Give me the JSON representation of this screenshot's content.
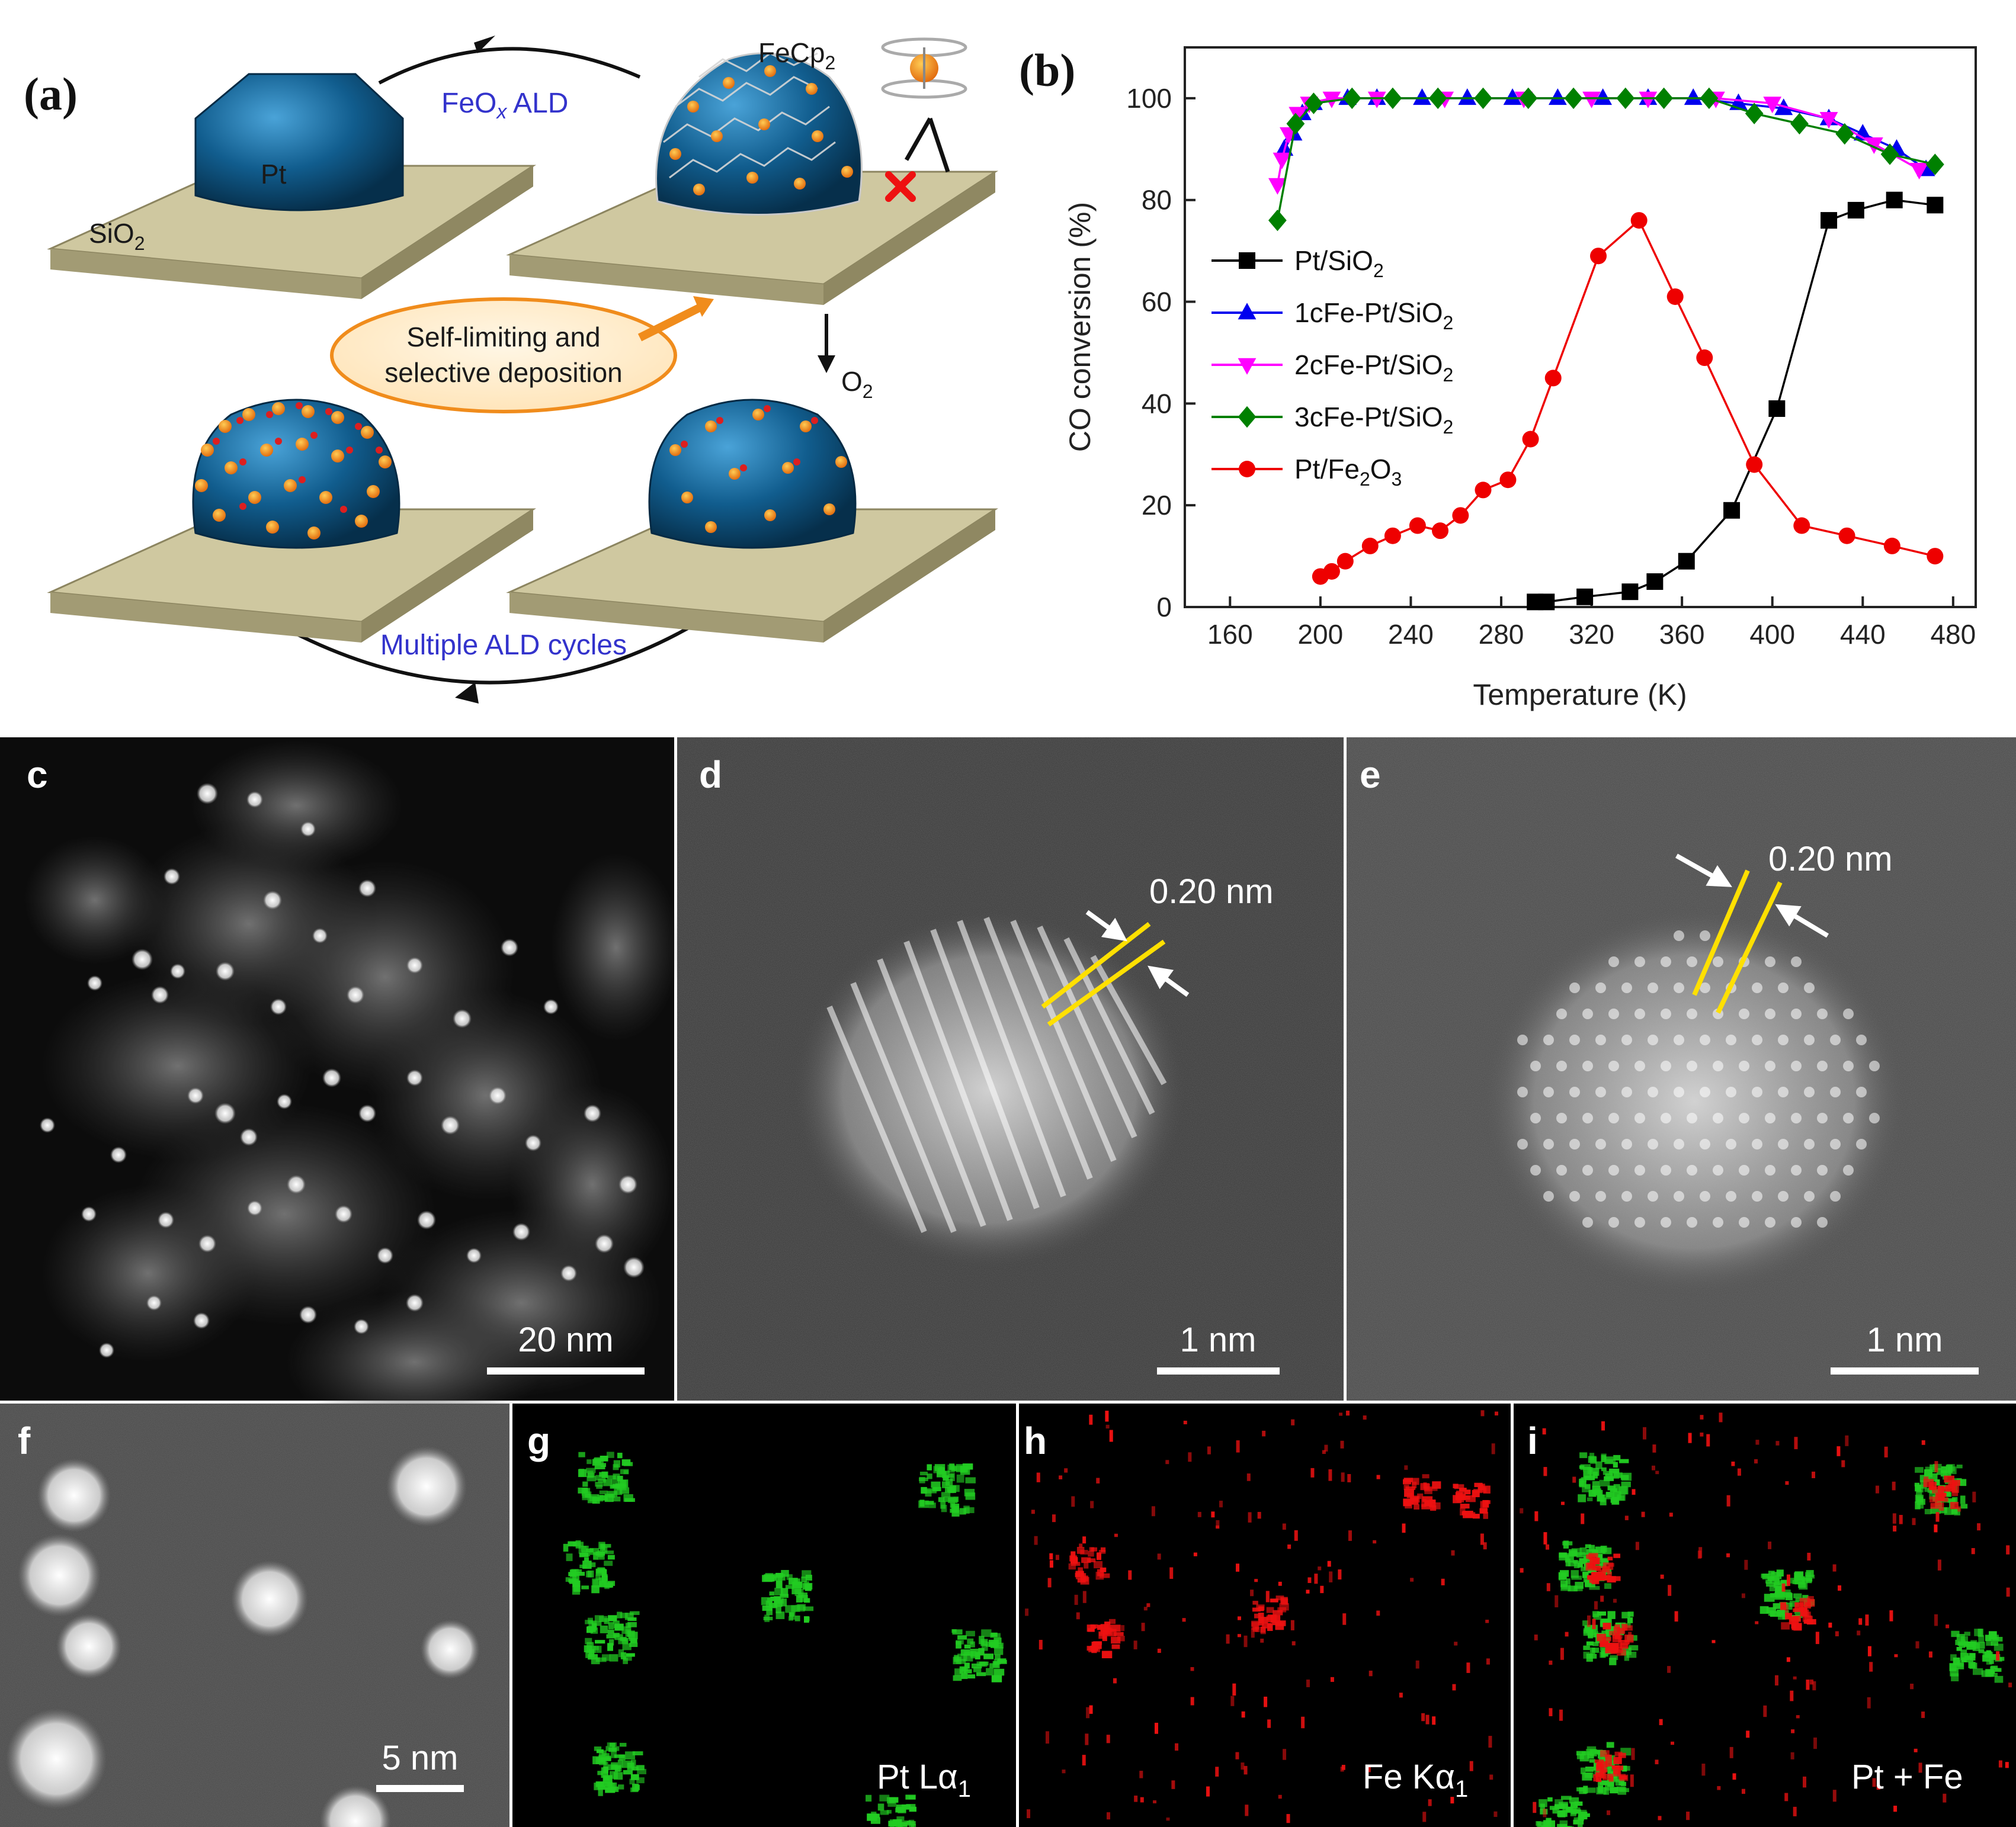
{
  "panels": {
    "a": "(a)",
    "b": "(b)",
    "c": "c",
    "d": "d",
    "e": "e",
    "f": "f",
    "g": "g",
    "h": "h",
    "i": "i"
  },
  "schematic": {
    "pt_label": "Pt",
    "support_label": "SiO",
    "support_sub": "2",
    "ald_label": "FeO",
    "ald_sub": "x",
    "ald_suffix": " ALD",
    "precursor_label": "FeCp",
    "precursor_sub": "2",
    "oxidant_label": "O",
    "oxidant_sub": "2",
    "bubble_line1": "Self-limiting and",
    "bubble_line2": "selective deposition",
    "cycles_label": "Multiple ALD cycles"
  },
  "microscopy": {
    "c_scale": "20 nm",
    "d_spacing": "0.20 nm",
    "d_scale": "1 nm",
    "e_spacing": "0.20 nm",
    "e_scale": "1 nm",
    "f_scale": "5 nm",
    "g_map_prefix": "Pt L",
    "g_map_alpha": "α",
    "g_map_sub": "1",
    "h_map_prefix": "Fe K",
    "h_map_alpha": "α",
    "h_map_sub": "1",
    "i_map": "Pt + Fe",
    "pt_color": "#22cc22",
    "fe_color": "#ee1111"
  },
  "chart_data": {
    "type": "line",
    "xlabel": "Temperature (K)",
    "ylabel": "CO conversion (%)",
    "xlim": [
      140,
      490
    ],
    "ylim": [
      0,
      110
    ],
    "xticks": [
      160,
      200,
      240,
      280,
      320,
      360,
      400,
      440,
      480
    ],
    "yticks": [
      0,
      20,
      40,
      60,
      80,
      100
    ],
    "legend_position": "middle-left",
    "series": [
      {
        "name": "Pt/SiO2",
        "label_main": "Pt/SiO",
        "label_sub": "2",
        "color": "#000000",
        "marker": "square",
        "x": [
          295,
          300,
          317,
          337,
          348,
          362,
          382,
          402,
          425,
          437,
          454,
          472
        ],
        "y": [
          1,
          1,
          2,
          3,
          5,
          9,
          19,
          39,
          76,
          78,
          80,
          79
        ]
      },
      {
        "name": "1cFe-Pt/SiO2",
        "label_main": "1cFe-Pt/SiO",
        "label_sub": "2",
        "color": "#0000ee",
        "marker": "triangle-up",
        "x": [
          184,
          188,
          192,
          197,
          212,
          225,
          245,
          265,
          285,
          305,
          325,
          345,
          365,
          385,
          405,
          425,
          440,
          455,
          468
        ],
        "y": [
          90,
          93,
          97,
          99,
          100,
          100,
          100,
          100,
          100,
          100,
          100,
          100,
          100,
          99,
          98,
          96,
          93,
          90,
          86
        ]
      },
      {
        "name": "2cFe-Pt/SiO2",
        "label_main": "2cFe-Pt/SiO",
        "label_sub": "2",
        "color": "#ff00ff",
        "marker": "triangle-down",
        "x": [
          181,
          183,
          186,
          190,
          195,
          205,
          225,
          255,
          290,
          320,
          345,
          375,
          400,
          425,
          445,
          465
        ],
        "y": [
          83,
          88,
          93,
          97,
          99,
          100,
          100,
          100,
          100,
          100,
          100,
          100,
          99,
          96,
          91,
          86
        ]
      },
      {
        "name": "3cFe-Pt/SiO2",
        "label_main": "3cFe-Pt/SiO",
        "label_sub": "2",
        "color": "#008000",
        "marker": "diamond",
        "x": [
          181,
          189,
          197,
          214,
          232,
          252,
          272,
          292,
          312,
          335,
          352,
          372,
          392,
          412,
          432,
          452,
          472
        ],
        "y": [
          76,
          95,
          99,
          100,
          100,
          100,
          100,
          100,
          100,
          100,
          100,
          100,
          97,
          95,
          93,
          89,
          87
        ]
      },
      {
        "name": "Pt/Fe2O3",
        "label_main": "Pt/Fe",
        "label_sub": "2",
        "label_main2": "O",
        "label_sub2": "3",
        "color": "#ee0000",
        "marker": "circle",
        "x": [
          200,
          205,
          211,
          222,
          232,
          243,
          253,
          262,
          272,
          283,
          293,
          303,
          323,
          341,
          357,
          370,
          392,
          413,
          433,
          453,
          472
        ],
        "y": [
          6,
          7,
          9,
          12,
          14,
          16,
          15,
          18,
          23,
          25,
          33,
          45,
          69,
          76,
          61,
          49,
          28,
          16,
          14,
          12,
          10
        ]
      }
    ]
  }
}
